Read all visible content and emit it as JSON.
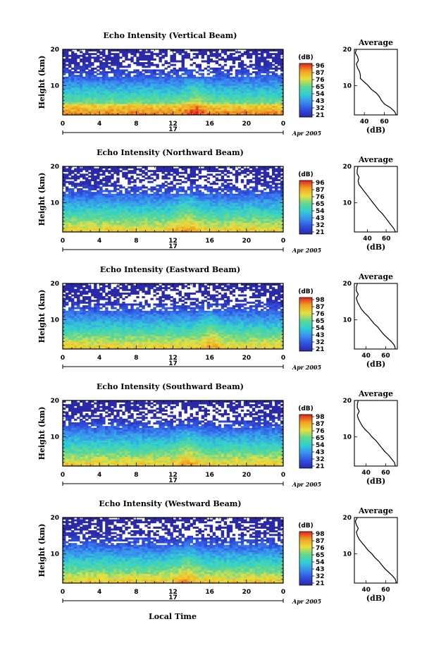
{
  "figure": {
    "date_label": "Apr 2005",
    "day_label": "17",
    "xlabel": "Local Time",
    "colorbar_unit": "(dB)",
    "avg_title": "Average",
    "avg_xlabel": "(dB)",
    "colors": {
      "low": "#2a2aa8",
      "mid": "#30d0d0",
      "high": "#e02020",
      "line": "#000000"
    }
  },
  "chart_data": [
    {
      "type": "heatmap",
      "title": "Echo Intensity (Vertical Beam)",
      "ylabel": "Height (km)",
      "xlabel": "",
      "x_ticks": [
        "0",
        "4",
        "8",
        "12",
        "16",
        "20",
        "0"
      ],
      "xlim": [
        0,
        24
      ],
      "y_ticks": [
        "10",
        "20"
      ],
      "ylim": [
        2,
        20
      ],
      "colorbar_ticks": [
        "96",
        "87",
        "76",
        "65",
        "54",
        "43",
        "32",
        "21"
      ],
      "colorbar_range": [
        21,
        96
      ],
      "average_profile": {
        "title": "Average",
        "xlabel": "(dB)",
        "x_ticks": [
          "40",
          "60"
        ],
        "xlim": [
          30,
          73
        ],
        "y_ticks": [
          "10",
          "20"
        ],
        "height_km": [
          2,
          3,
          4,
          5,
          6,
          7,
          8,
          9,
          10,
          11,
          12,
          13,
          14,
          15,
          16,
          17,
          18,
          19,
          20
        ],
        "echo_db": [
          72,
          70,
          66,
          60,
          57,
          55,
          52,
          47,
          44,
          40,
          36,
          36,
          35,
          33,
          32,
          34,
          33,
          31,
          32
        ]
      }
    },
    {
      "type": "heatmap",
      "title": "Echo Intensity (Northward Beam)",
      "ylabel": "Height (km)",
      "xlabel": "",
      "x_ticks": [
        "0",
        "4",
        "8",
        "12",
        "16",
        "20",
        "0"
      ],
      "xlim": [
        0,
        24
      ],
      "y_ticks": [
        "10",
        "20"
      ],
      "ylim": [
        2,
        20
      ],
      "colorbar_ticks": [
        "96",
        "87",
        "76",
        "65",
        "54",
        "43",
        "32",
        "21"
      ],
      "colorbar_range": [
        21,
        96
      ],
      "average_profile": {
        "title": "Average",
        "xlabel": "(dB)",
        "x_ticks": [
          "40",
          "60"
        ],
        "xlim": [
          26,
          72
        ],
        "y_ticks": [
          "10",
          "20"
        ],
        "height_km": [
          2,
          3,
          4,
          5,
          6,
          7,
          8,
          9,
          10,
          11,
          12,
          13,
          14,
          15,
          16,
          17,
          18,
          19,
          20
        ],
        "echo_db": [
          70,
          68,
          65,
          62,
          59,
          56,
          52,
          49,
          46,
          43,
          40,
          37,
          34,
          31,
          30,
          31,
          29,
          29,
          30
        ]
      }
    },
    {
      "type": "heatmap",
      "title": "Echo Intensity (Eastward Beam)",
      "ylabel": "Height (km)",
      "xlabel": "",
      "x_ticks": [
        "0",
        "4",
        "8",
        "12",
        "16",
        "20",
        "0"
      ],
      "xlim": [
        0,
        24
      ],
      "y_ticks": [
        "10",
        "20"
      ],
      "ylim": [
        2,
        20
      ],
      "colorbar_ticks": [
        "98",
        "87",
        "76",
        "65",
        "54",
        "43",
        "32",
        "21"
      ],
      "colorbar_range": [
        21,
        98
      ],
      "average_profile": {
        "title": "Average",
        "xlabel": "(dB)",
        "x_ticks": [
          "40",
          "60"
        ],
        "xlim": [
          28,
          72
        ],
        "y_ticks": [
          "10",
          "20"
        ],
        "height_km": [
          2,
          3,
          4,
          5,
          6,
          7,
          8,
          9,
          10,
          11,
          12,
          13,
          14,
          15,
          16,
          17,
          18,
          19,
          20
        ],
        "echo_db": [
          70,
          69,
          66,
          62,
          58,
          55,
          52,
          48,
          45,
          42,
          38,
          35,
          33,
          31,
          30,
          32,
          30,
          30,
          31
        ]
      }
    },
    {
      "type": "heatmap",
      "title": "Echo Intensity (Southward Beam)",
      "ylabel": "Height (km)",
      "xlabel": "",
      "x_ticks": [
        "0",
        "4",
        "8",
        "12",
        "16",
        "20",
        "0"
      ],
      "xlim": [
        0,
        24
      ],
      "y_ticks": [
        "10",
        "20"
      ],
      "ylim": [
        2,
        20
      ],
      "colorbar_ticks": [
        "98",
        "87",
        "76",
        "65",
        "54",
        "43",
        "32",
        "21"
      ],
      "colorbar_range": [
        21,
        98
      ],
      "average_profile": {
        "title": "Average",
        "xlabel": "(dB)",
        "x_ticks": [
          "40",
          "60"
        ],
        "xlim": [
          28,
          72
        ],
        "y_ticks": [
          "10",
          "20"
        ],
        "height_km": [
          2,
          3,
          4,
          5,
          6,
          7,
          8,
          9,
          10,
          11,
          12,
          13,
          14,
          15,
          16,
          17,
          18,
          19,
          20
        ],
        "echo_db": [
          70,
          69,
          66,
          63,
          59,
          56,
          53,
          50,
          46,
          43,
          39,
          36,
          34,
          32,
          31,
          33,
          31,
          31,
          32
        ]
      }
    },
    {
      "type": "heatmap",
      "title": "Echo Intensity (Westward Beam)",
      "ylabel": "Height (km)",
      "xlabel": "Local Time",
      "x_ticks": [
        "0",
        "4",
        "8",
        "12",
        "16",
        "20",
        "0"
      ],
      "xlim": [
        0,
        24
      ],
      "y_ticks": [
        "10",
        "20"
      ],
      "ylim": [
        2,
        20
      ],
      "colorbar_ticks": [
        "98",
        "87",
        "76",
        "65",
        "54",
        "43",
        "32",
        "21"
      ],
      "colorbar_range": [
        21,
        98
      ],
      "average_profile": {
        "title": "Average",
        "xlabel": "(dB)",
        "x_ticks": [
          "40",
          "60"
        ],
        "xlim": [
          28,
          72
        ],
        "y_ticks": [
          "10",
          "20"
        ],
        "height_km": [
          2,
          3,
          4,
          5,
          6,
          7,
          8,
          9,
          10,
          11,
          12,
          13,
          14,
          15,
          16,
          17,
          18,
          19,
          20
        ],
        "echo_db": [
          71,
          70,
          67,
          63,
          59,
          56,
          53,
          49,
          46,
          42,
          39,
          36,
          33,
          31,
          30,
          32,
          30,
          29,
          31
        ]
      }
    }
  ]
}
